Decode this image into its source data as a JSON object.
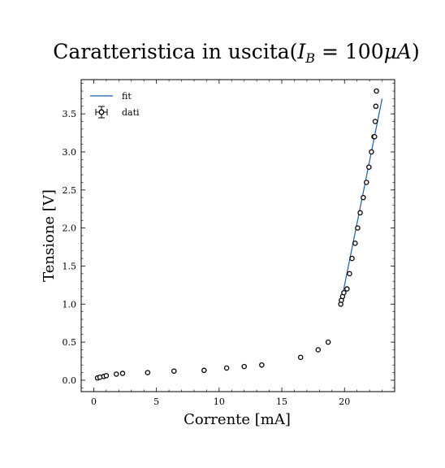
{
  "chart_data": {
    "type": "scatter",
    "title": "Caratteristica in uscita(I_B = 100μA)",
    "title_parts": {
      "prefix": "Caratteristica in uscita(",
      "var": "I",
      "sub": "B",
      "rest": " = 100",
      "mu": "μ",
      "unit": "A",
      "close": ")"
    },
    "xlabel": "Corrente [mA]",
    "ylabel": "Tensione [V]",
    "xlim": [
      -1,
      24
    ],
    "ylim": [
      -0.15,
      3.95
    ],
    "xticks": [
      0,
      5,
      10,
      15,
      20
    ],
    "yticks": [
      0.0,
      0.5,
      1.0,
      1.5,
      2.0,
      2.5,
      3.0,
      3.5
    ],
    "xtick_labels": [
      "0",
      "5",
      "10",
      "15",
      "20"
    ],
    "ytick_labels": [
      "0.0",
      "0.5",
      "1.0",
      "1.5",
      "2.0",
      "2.5",
      "3.0",
      "3.5"
    ],
    "grid": false,
    "legend_position": "top-left",
    "legend": [
      {
        "label": "fit",
        "kind": "line"
      },
      {
        "label": "dati",
        "kind": "errorbar-marker"
      }
    ],
    "colors": {
      "fit": "#1f5fa8",
      "dati": "#000000"
    },
    "series": [
      {
        "name": "dati",
        "kind": "scatter",
        "x": [
          0.3,
          0.5,
          0.8,
          1.0,
          1.8,
          2.3,
          4.3,
          6.4,
          8.8,
          10.6,
          12.0,
          13.4,
          16.5,
          17.9,
          18.7,
          19.7,
          19.75,
          19.85,
          19.95,
          20.2,
          20.4,
          20.6,
          20.85,
          21.05,
          21.25,
          21.5,
          21.75,
          21.95,
          22.15,
          22.35,
          22.4,
          22.45,
          22.5,
          22.55
        ],
        "y": [
          0.03,
          0.04,
          0.05,
          0.06,
          0.08,
          0.09,
          0.1,
          0.12,
          0.13,
          0.16,
          0.18,
          0.2,
          0.3,
          0.4,
          0.5,
          1.0,
          1.05,
          1.1,
          1.15,
          1.2,
          1.4,
          1.6,
          1.8,
          2.0,
          2.2,
          2.4,
          2.6,
          2.8,
          3.0,
          3.2,
          3.2,
          3.4,
          3.6,
          3.8
        ]
      },
      {
        "name": "fit",
        "kind": "line",
        "x": [
          19.7,
          23.0
        ],
        "y": [
          1.0,
          3.7
        ]
      }
    ]
  }
}
